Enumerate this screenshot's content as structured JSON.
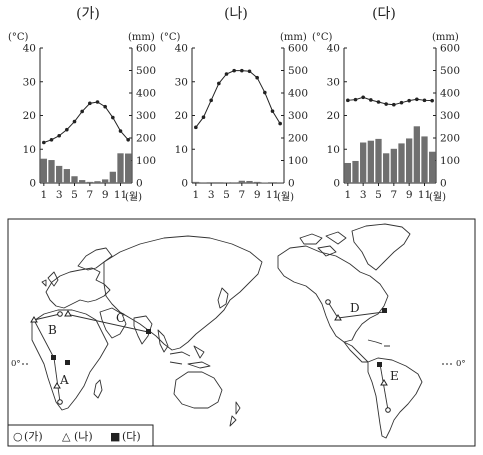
{
  "chart_data": [
    {
      "type": "bar+line",
      "title": "(가)",
      "temp_unit": "(°C)",
      "precip_unit": "(mm)",
      "month_suffix": "(월)",
      "x_ticks": [
        "1",
        "3",
        "5",
        "7",
        "9",
        "11"
      ],
      "temp_ticks": [
        "0",
        "10",
        "20",
        "30",
        "40"
      ],
      "precip_ticks": [
        "0",
        "100",
        "200",
        "300",
        "400",
        "500",
        "600"
      ],
      "temp_ylim": [
        0,
        40
      ],
      "precip_ylim": [
        0,
        600
      ],
      "months": [
        1,
        2,
        3,
        4,
        5,
        6,
        7,
        8,
        9,
        10,
        11,
        12
      ],
      "temperature": [
        12,
        12.8,
        14,
        15.8,
        18.2,
        21.2,
        23.6,
        24,
        22.6,
        19.4,
        15.4,
        12.8
      ],
      "precipitation": [
        108,
        102,
        76,
        62,
        30,
        13,
        5,
        8,
        16,
        50,
        132,
        131
      ]
    },
    {
      "type": "bar+line",
      "title": "(나)",
      "temp_unit": "(°C)",
      "precip_unit": "(mm)",
      "month_suffix": "(월)",
      "x_ticks": [
        "1",
        "3",
        "5",
        "7",
        "9",
        "11"
      ],
      "temp_ticks": [
        "0",
        "10",
        "20",
        "30",
        "40"
      ],
      "precip_ticks": [
        "0",
        "100",
        "200",
        "300",
        "400",
        "500",
        "600"
      ],
      "temp_ylim": [
        0,
        40
      ],
      "precip_ylim": [
        0,
        600
      ],
      "months": [
        1,
        2,
        3,
        4,
        5,
        6,
        7,
        8,
        9,
        10,
        11,
        12
      ],
      "temperature": [
        16.5,
        19.5,
        24.5,
        29.5,
        32.3,
        33.3,
        33.3,
        33.1,
        31.2,
        26.8,
        21.3,
        17.6
      ],
      "precipitation": [
        5,
        1,
        0,
        0,
        1,
        3,
        10,
        9,
        5,
        2,
        0,
        1
      ]
    },
    {
      "type": "bar+line",
      "title": "(다)",
      "temp_unit": "(°C)",
      "precip_unit": "(mm)",
      "month_suffix": "(월)",
      "x_ticks": [
        "1",
        "3",
        "5",
        "7",
        "9",
        "11"
      ],
      "temp_ticks": [
        "0",
        "10",
        "20",
        "30",
        "40"
      ],
      "precip_ticks": [
        "0",
        "100",
        "200",
        "300",
        "400",
        "500",
        "600"
      ],
      "temp_ylim": [
        0,
        40
      ],
      "precip_ylim": [
        0,
        600
      ],
      "months": [
        1,
        2,
        3,
        4,
        5,
        6,
        7,
        8,
        9,
        10,
        11,
        12
      ],
      "temperature": [
        24.5,
        24.7,
        25.4,
        24.6,
        24,
        23.4,
        23.2,
        23.8,
        24.4,
        24.8,
        24.5,
        24.4
      ],
      "precipitation": [
        89,
        98,
        180,
        188,
        196,
        132,
        152,
        176,
        198,
        252,
        207,
        139
      ]
    }
  ],
  "map": {
    "region_labels": [
      "A",
      "B",
      "C",
      "D",
      "E"
    ],
    "equator_label": "0°",
    "legend": [
      {
        "symbol": "○",
        "label": "(가)"
      },
      {
        "symbol": "△",
        "label": "(나)"
      },
      {
        "symbol": "■",
        "label": "(다)"
      }
    ]
  }
}
